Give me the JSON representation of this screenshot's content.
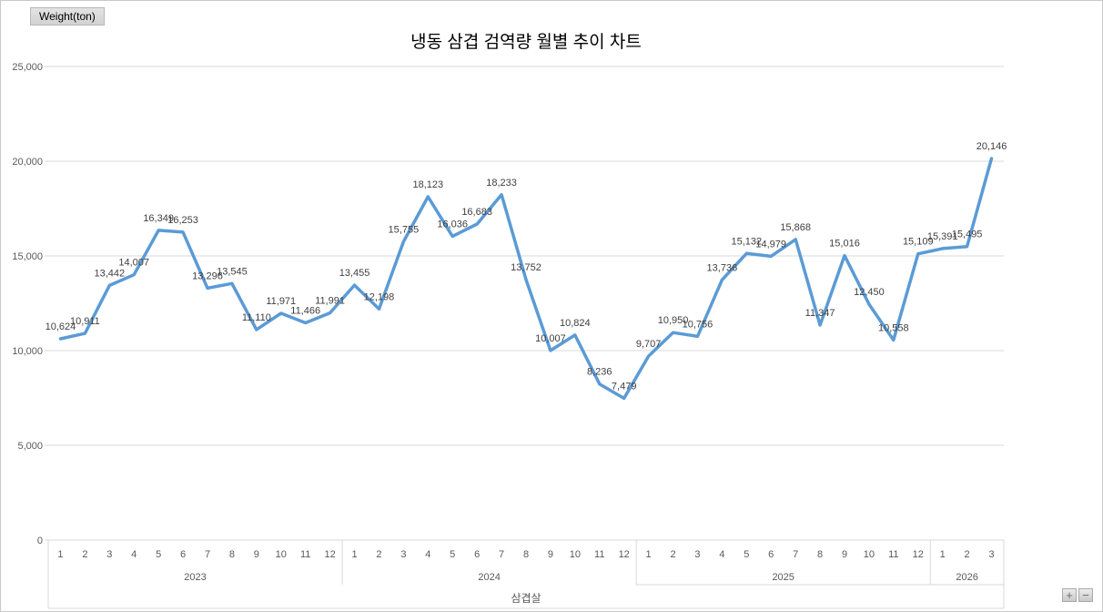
{
  "field_button": "Weight(ton)",
  "title": "냉동 삼겹 검역량 월별 추이 차트",
  "axis_title": "삼겹살",
  "zoom_controls": {
    "plus": "+",
    "minus": "−"
  },
  "colors": {
    "line": "#5B9BD5",
    "grid": "#D9D9D9",
    "axis_text": "#595959",
    "data_label_text": "#3F3F3F"
  },
  "chart_data": {
    "type": "line",
    "title": "냉동 삼겹 검역량 월별 추이 차트",
    "xlabel": "삼겹살",
    "ylabel": "Weight(ton)",
    "ylim": [
      0,
      25000
    ],
    "ytick_interval": 5000,
    "ytick_labels": [
      "0",
      "5,000",
      "10,000",
      "15,000",
      "20,000",
      "25,000"
    ],
    "grid": true,
    "data_labels": true,
    "legend": "none",
    "groups": [
      {
        "year": "2023",
        "months": [
          "1",
          "2",
          "3",
          "4",
          "5",
          "6",
          "7",
          "8",
          "9",
          "10",
          "11",
          "12"
        ],
        "values": [
          10624,
          10911,
          13442,
          14007,
          16349,
          16253,
          13296,
          13545,
          11110,
          11971,
          11466,
          11991
        ]
      },
      {
        "year": "2024",
        "months": [
          "1",
          "2",
          "3",
          "4",
          "5",
          "6",
          "7",
          "8",
          "9",
          "10",
          "11",
          "12"
        ],
        "values": [
          13455,
          12198,
          15755,
          18123,
          16036,
          16683,
          18233,
          13752,
          10007,
          10824,
          8236,
          7479
        ]
      },
      {
        "year": "2025",
        "months": [
          "1",
          "2",
          "3",
          "4",
          "5",
          "6",
          "7",
          "8",
          "9",
          "10",
          "11",
          "12"
        ],
        "values": [
          9707,
          10950,
          10756,
          13736,
          15132,
          14979,
          15868,
          11347,
          15016,
          12450,
          10558,
          15109
        ]
      },
      {
        "year": "2026",
        "months": [
          "1",
          "2",
          "3"
        ],
        "values": [
          15391,
          15495,
          20146
        ]
      }
    ]
  }
}
